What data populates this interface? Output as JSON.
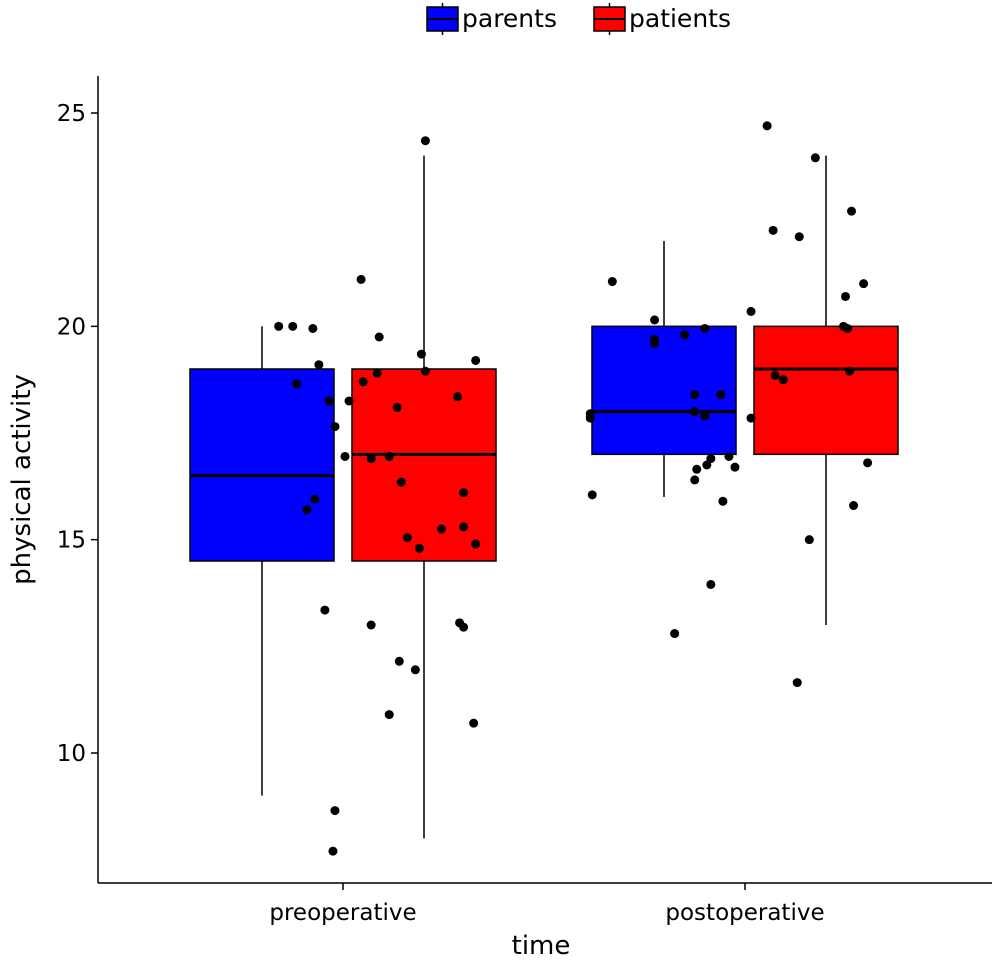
{
  "chart_data": {
    "type": "boxplot",
    "xlabel": "time",
    "ylabel": "physical activity",
    "categories": [
      "preoperative",
      "postoperative"
    ],
    "yticks": [
      10,
      15,
      20,
      25
    ],
    "ylim": [
      6.7,
      25.9
    ],
    "grid": false,
    "legend": {
      "position": "top",
      "entries": [
        {
          "name": "parents",
          "color": "#0000ff"
        },
        {
          "name": "patients",
          "color": "#ff0000"
        }
      ]
    },
    "series": [
      {
        "name": "parents",
        "color": "#0000ff",
        "boxes": [
          {
            "category": "preoperative",
            "whisker_low": 9,
            "q1": 14.5,
            "median": 16.5,
            "q3": 19,
            "whisker_high": 20
          },
          {
            "category": "postoperative",
            "whisker_low": 16,
            "q1": 17,
            "median": 18,
            "q3": 20,
            "whisker_high": 22
          }
        ]
      },
      {
        "name": "patients",
        "color": "#ff0000",
        "boxes": [
          {
            "category": "preoperative",
            "whisker_low": 8,
            "q1": 14.5,
            "median": 17,
            "q3": 19,
            "whisker_high": 24
          },
          {
            "category": "postoperative",
            "whisker_low": 13,
            "q1": 17,
            "median": 19,
            "q3": 20,
            "whisker_high": 24
          }
        ]
      }
    ],
    "points": [
      {
        "category": "preoperative",
        "series": "parents",
        "offset": -0.32,
        "y": 20.0
      },
      {
        "category": "preoperative",
        "series": "parents",
        "offset": -0.25,
        "y": 20.0
      },
      {
        "category": "preoperative",
        "series": "parents",
        "offset": -0.15,
        "y": 19.95
      },
      {
        "category": "preoperative",
        "series": "parents",
        "offset": -0.12,
        "y": 19.1
      },
      {
        "category": "preoperative",
        "series": "parents",
        "offset": -0.23,
        "y": 18.65
      },
      {
        "category": "preoperative",
        "series": "parents",
        "offset": -0.07,
        "y": 18.25
      },
      {
        "category": "preoperative",
        "series": "parents",
        "offset": -0.04,
        "y": 17.65
      },
      {
        "category": "preoperative",
        "series": "parents",
        "offset": 0.01,
        "y": 16.95
      },
      {
        "category": "preoperative",
        "series": "parents",
        "offset": -0.14,
        "y": 15.95
      },
      {
        "category": "preoperative",
        "series": "parents",
        "offset": -0.18,
        "y": 15.7
      },
      {
        "category": "preoperative",
        "series": "parents",
        "offset": -0.09,
        "y": 13.35
      },
      {
        "category": "preoperative",
        "series": "parents",
        "offset": 0.09,
        "y": 21.1
      },
      {
        "category": "preoperative",
        "series": "parents",
        "offset": 0.1,
        "y": 18.7
      },
      {
        "category": "preoperative",
        "series": "parents",
        "offset": 0.17,
        "y": 18.9
      },
      {
        "category": "preoperative",
        "series": "parents",
        "offset": 0.27,
        "y": 18.1
      },
      {
        "category": "preoperative",
        "series": "parents",
        "offset": 0.23,
        "y": 16.95
      },
      {
        "category": "preoperative",
        "series": "parents",
        "offset": 0.29,
        "y": 16.35
      },
      {
        "category": "preoperative",
        "series": "parents",
        "offset": 0.32,
        "y": 15.05
      },
      {
        "category": "preoperative",
        "series": "parents",
        "offset": 0.28,
        "y": 12.15
      },
      {
        "category": "preoperative",
        "series": "parents",
        "offset": 0.23,
        "y": 10.9
      },
      {
        "category": "preoperative",
        "series": "parents",
        "offset": -0.04,
        "y": 8.65
      },
      {
        "category": "preoperative",
        "series": "parents",
        "offset": -0.05,
        "y": 7.7
      },
      {
        "category": "preoperative",
        "series": "patients",
        "offset": 0.03,
        "y": 18.25
      },
      {
        "category": "preoperative",
        "series": "patients",
        "offset": 0.14,
        "y": 16.9
      },
      {
        "category": "preoperative",
        "series": "patients",
        "offset": 0.18,
        "y": 19.75
      },
      {
        "category": "preoperative",
        "series": "patients",
        "offset": 0.39,
        "y": 19.35
      },
      {
        "category": "preoperative",
        "series": "patients",
        "offset": 0.41,
        "y": 18.95
      },
      {
        "category": "preoperative",
        "series": "patients",
        "offset": 0.57,
        "y": 18.35
      },
      {
        "category": "preoperative",
        "series": "patients",
        "offset": 0.66,
        "y": 19.2
      },
      {
        "category": "preoperative",
        "series": "patients",
        "offset": 0.6,
        "y": 16.1
      },
      {
        "category": "preoperative",
        "series": "patients",
        "offset": 0.49,
        "y": 15.25
      },
      {
        "category": "preoperative",
        "series": "patients",
        "offset": 0.6,
        "y": 15.3
      },
      {
        "category": "preoperative",
        "series": "patients",
        "offset": 0.66,
        "y": 14.9
      },
      {
        "category": "preoperative",
        "series": "patients",
        "offset": 0.38,
        "y": 14.8
      },
      {
        "category": "preoperative",
        "series": "patients",
        "offset": 0.14,
        "y": 13.0
      },
      {
        "category": "preoperative",
        "series": "patients",
        "offset": 0.58,
        "y": 13.05
      },
      {
        "category": "preoperative",
        "series": "patients",
        "offset": 0.6,
        "y": 12.95
      },
      {
        "category": "preoperative",
        "series": "patients",
        "offset": 0.36,
        "y": 11.95
      },
      {
        "category": "preoperative",
        "series": "patients",
        "offset": 0.65,
        "y": 10.7
      },
      {
        "category": "preoperative",
        "series": "patients",
        "offset": 0.41,
        "y": 24.35
      },
      {
        "category": "postoperative",
        "series": "parents",
        "offset": -0.77,
        "y": 17.95
      },
      {
        "category": "postoperative",
        "series": "parents",
        "offset": -0.77,
        "y": 17.85
      },
      {
        "category": "postoperative",
        "series": "parents",
        "offset": -0.76,
        "y": 16.05
      },
      {
        "category": "postoperative",
        "series": "parents",
        "offset": -0.66,
        "y": 21.05
      },
      {
        "category": "postoperative",
        "series": "parents",
        "offset": -0.45,
        "y": 20.15
      },
      {
        "category": "postoperative",
        "series": "parents",
        "offset": -0.45,
        "y": 19.7
      },
      {
        "category": "postoperative",
        "series": "parents",
        "offset": -0.45,
        "y": 19.6
      },
      {
        "category": "postoperative",
        "series": "parents",
        "offset": -0.3,
        "y": 19.8
      },
      {
        "category": "postoperative",
        "series": "parents",
        "offset": -0.2,
        "y": 19.95
      },
      {
        "category": "postoperative",
        "series": "parents",
        "offset": -0.25,
        "y": 18.4
      },
      {
        "category": "postoperative",
        "series": "parents",
        "offset": -0.12,
        "y": 18.4
      },
      {
        "category": "postoperative",
        "series": "parents",
        "offset": -0.25,
        "y": 18.0
      },
      {
        "category": "postoperative",
        "series": "parents",
        "offset": -0.2,
        "y": 17.9
      },
      {
        "category": "postoperative",
        "series": "parents",
        "offset": -0.08,
        "y": 16.95
      },
      {
        "category": "postoperative",
        "series": "parents",
        "offset": -0.05,
        "y": 16.7
      },
      {
        "category": "postoperative",
        "series": "parents",
        "offset": -0.17,
        "y": 16.9
      },
      {
        "category": "postoperative",
        "series": "parents",
        "offset": -0.19,
        "y": 16.75
      },
      {
        "category": "postoperative",
        "series": "parents",
        "offset": -0.24,
        "y": 16.65
      },
      {
        "category": "postoperative",
        "series": "parents",
        "offset": -0.25,
        "y": 16.4
      },
      {
        "category": "postoperative",
        "series": "parents",
        "offset": -0.11,
        "y": 15.9
      },
      {
        "category": "postoperative",
        "series": "parents",
        "offset": -0.17,
        "y": 13.95
      },
      {
        "category": "postoperative",
        "series": "parents",
        "offset": -0.35,
        "y": 12.8
      },
      {
        "category": "postoperative",
        "series": "patients",
        "offset": 0.03,
        "y": 20.35
      },
      {
        "category": "postoperative",
        "series": "patients",
        "offset": 0.03,
        "y": 17.85
      },
      {
        "category": "postoperative",
        "series": "patients",
        "offset": 0.11,
        "y": 24.7
      },
      {
        "category": "postoperative",
        "series": "patients",
        "offset": 0.14,
        "y": 22.25
      },
      {
        "category": "postoperative",
        "series": "patients",
        "offset": 0.27,
        "y": 22.1
      },
      {
        "category": "postoperative",
        "series": "patients",
        "offset": 0.35,
        "y": 23.95
      },
      {
        "category": "postoperative",
        "series": "patients",
        "offset": 0.15,
        "y": 18.85
      },
      {
        "category": "postoperative",
        "series": "patients",
        "offset": 0.19,
        "y": 18.75
      },
      {
        "category": "postoperative",
        "series": "patients",
        "offset": 0.53,
        "y": 22.7
      },
      {
        "category": "postoperative",
        "series": "patients",
        "offset": 0.5,
        "y": 20.7
      },
      {
        "category": "postoperative",
        "series": "patients",
        "offset": 0.49,
        "y": 20.0
      },
      {
        "category": "postoperative",
        "series": "patients",
        "offset": 0.51,
        "y": 19.95
      },
      {
        "category": "postoperative",
        "series": "patients",
        "offset": 0.59,
        "y": 21.0
      },
      {
        "category": "postoperative",
        "series": "patients",
        "offset": 0.52,
        "y": 18.95
      },
      {
        "category": "postoperative",
        "series": "patients",
        "offset": 0.61,
        "y": 16.8
      },
      {
        "category": "postoperative",
        "series": "patients",
        "offset": 0.54,
        "y": 15.8
      },
      {
        "category": "postoperative",
        "series": "patients",
        "offset": 0.32,
        "y": 15.0
      },
      {
        "category": "postoperative",
        "series": "patients",
        "offset": 0.26,
        "y": 11.65
      }
    ]
  }
}
